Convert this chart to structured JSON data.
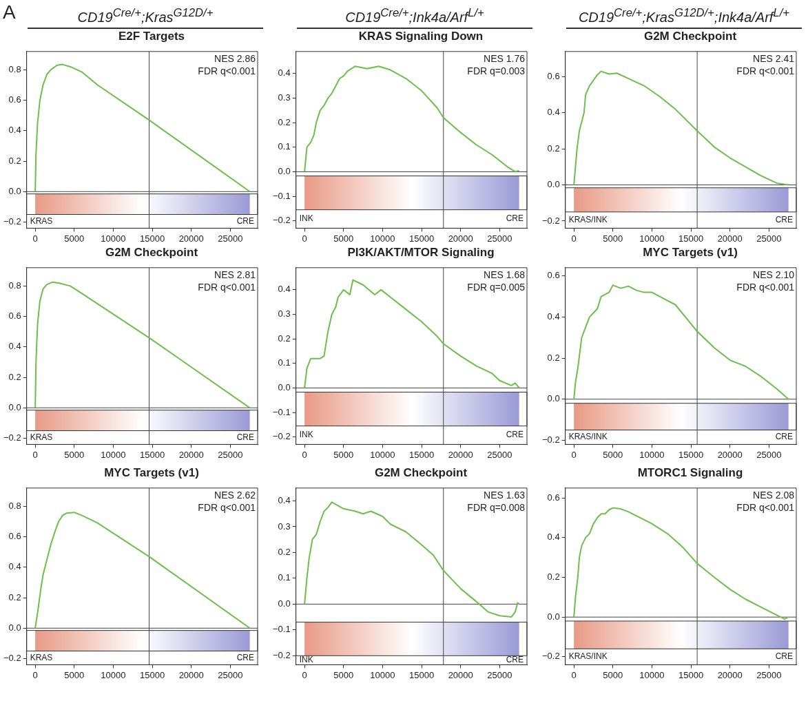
{
  "chart_data": [
    {
      "type": "line",
      "title": "CD19$^{Cre/+}$;Kras$^{G12D/+}$",
      "subtitle": "E2F Targets",
      "color": "#6cbf4a",
      "marker": "none",
      "x": [
        0,
        100,
        300,
        600,
        1000,
        1500,
        2000,
        2800,
        3500,
        4500,
        6000,
        8000,
        14600,
        27500
      ],
      "values": [
        0,
        0.25,
        0.45,
        0.6,
        0.7,
        0.77,
        0.8,
        0.83,
        0.835,
        0.82,
        0.785,
        0.7,
        0.47,
        0
      ],
      "xlim": [
        -1100,
        28500
      ],
      "xticks": [
        0,
        5000,
        10000,
        15000,
        20000,
        25000
      ],
      "ylim": [
        -0.24,
        0.92
      ],
      "yticks": [
        {
          "value": -0.2,
          "label": "−0.2"
        },
        {
          "value": 0,
          "label": "0.0"
        },
        0.2,
        0.4,
        0.6,
        0.8
      ],
      "ref_lines": [
        {
          "axis": "x",
          "value": 14600
        },
        {
          "axis": "y",
          "value": 0
        }
      ],
      "bands": [
        {
          "axis": "y",
          "from": -0.15,
          "to": -0.015
        }
      ],
      "annotations": [
        "A",
        "NES 2.86",
        "FDR q<0.001",
        "KRAS",
        "CRE"
      ]
    },
    {
      "type": "line",
      "title": "CD19$^{Cre/+}$;Ink4a/Arf$^{L/+}$",
      "subtitle": "KRAS Signaling Down",
      "color": "#6cbf4a",
      "marker": "none",
      "x": [
        0,
        300,
        800,
        1200,
        1500,
        2000,
        2500,
        3000,
        3500,
        4000,
        4500,
        5000,
        5500,
        6500,
        8000,
        9500,
        11000,
        13000,
        15000,
        17000,
        17800,
        20000,
        22000,
        24000,
        26000,
        27000,
        27500
      ],
      "values": [
        0,
        0.1,
        0.12,
        0.15,
        0.2,
        0.25,
        0.27,
        0.3,
        0.32,
        0.35,
        0.38,
        0.39,
        0.41,
        0.43,
        0.42,
        0.43,
        0.415,
        0.38,
        0.33,
        0.26,
        0.22,
        0.16,
        0.11,
        0.07,
        0.02,
        0,
        0.005
      ],
      "xlim": [
        -1100,
        28500
      ],
      "xticks": [
        0,
        5000,
        10000,
        15000,
        20000,
        25000
      ],
      "ylim": [
        -0.23,
        0.49
      ],
      "yticks": [
        {
          "value": -0.2,
          "label": "−0.2"
        },
        {
          "value": -0.1,
          "label": "−0.1"
        },
        {
          "value": 0,
          "label": "0.0"
        },
        0.1,
        0.2,
        0.3,
        0.4
      ],
      "ref_lines": [
        {
          "axis": "x",
          "value": 17800
        },
        {
          "axis": "y",
          "value": 0
        }
      ],
      "bands": [
        {
          "axis": "y",
          "from": -0.155,
          "to": -0.017
        }
      ],
      "annotations": [
        "NES 1.76",
        "FDR q=0.003",
        "INK",
        "CRE"
      ]
    },
    {
      "type": "line",
      "title": "CD19$^{Cre/+}$;Kras$^{G12D/+}$;Ink4a/Arf$^{L/+}$",
      "subtitle": "G2M Checkpoint",
      "color": "#6cbf4a",
      "marker": "none",
      "x": [
        0,
        200,
        400,
        700,
        1000,
        1300,
        1500,
        2000,
        2500,
        3000,
        3500,
        4500,
        5500,
        7000,
        9000,
        11000,
        13000,
        15800,
        18000,
        20000,
        22000,
        24000,
        26000,
        27500
      ],
      "values": [
        0,
        0.1,
        0.2,
        0.3,
        0.35,
        0.4,
        0.5,
        0.55,
        0.58,
        0.61,
        0.63,
        0.615,
        0.62,
        0.59,
        0.55,
        0.49,
        0.42,
        0.3,
        0.21,
        0.15,
        0.1,
        0.05,
        0.01,
        0
      ],
      "xlim": [
        -1100,
        28500
      ],
      "xticks": [
        0,
        5000,
        10000,
        15000,
        20000,
        25000
      ],
      "ylim": [
        -0.24,
        0.74
      ],
      "yticks": [
        {
          "value": -0.2,
          "label": "−0.2"
        },
        {
          "value": 0,
          "label": "0.0"
        },
        0.2,
        0.4,
        0.6
      ],
      "ref_lines": [
        {
          "axis": "x",
          "value": 15800
        },
        {
          "axis": "y",
          "value": 0
        }
      ],
      "bands": [
        {
          "axis": "y",
          "from": -0.15,
          "to": -0.016
        }
      ],
      "annotations": [
        "NES 2.41",
        "FDR q<0.001",
        "KRAS/INK",
        "CRE"
      ]
    },
    {
      "type": "line",
      "title": "G2M Checkpoint",
      "color": "#6cbf4a",
      "marker": "none",
      "x": [
        0,
        100,
        300,
        600,
        1000,
        1500,
        2200,
        3000,
        4500,
        6000,
        14600,
        27500
      ],
      "values": [
        0,
        0.3,
        0.55,
        0.7,
        0.78,
        0.81,
        0.825,
        0.82,
        0.8,
        0.75,
        0.46,
        0
      ],
      "xlim": [
        -1100,
        28500
      ],
      "xticks": [
        0,
        5000,
        10000,
        15000,
        20000,
        25000
      ],
      "ylim": [
        -0.24,
        0.92
      ],
      "yticks": [
        {
          "value": -0.2,
          "label": "−0.2"
        },
        {
          "value": 0,
          "label": "0.0"
        },
        0.2,
        0.4,
        0.6,
        0.8
      ],
      "ref_lines": [
        {
          "axis": "x",
          "value": 14600
        },
        {
          "axis": "y",
          "value": 0
        }
      ],
      "bands": [
        {
          "axis": "y",
          "from": -0.15,
          "to": -0.015
        }
      ],
      "annotations": [
        "NES 2.81",
        "FDR q<0.001",
        "KRAS",
        "CRE"
      ]
    },
    {
      "type": "line",
      "title": "PI3K/AKT/MTOR Signaling",
      "color": "#6cbf4a",
      "marker": "none",
      "x": [
        0,
        300,
        800,
        2000,
        2500,
        3000,
        3500,
        4000,
        4300,
        5000,
        5800,
        6200,
        7500,
        9000,
        9800,
        11000,
        13000,
        15000,
        17000,
        17800,
        20000,
        22000,
        24000,
        25000,
        26500,
        27000,
        27500
      ],
      "values": [
        0,
        0.08,
        0.12,
        0.12,
        0.13,
        0.23,
        0.3,
        0.33,
        0.37,
        0.4,
        0.38,
        0.44,
        0.42,
        0.38,
        0.4,
        0.37,
        0.32,
        0.27,
        0.21,
        0.18,
        0.13,
        0.09,
        0.06,
        0.03,
        0.01,
        0.02,
        0
      ],
      "xlim": [
        -1100,
        28500
      ],
      "xticks": [
        0,
        5000,
        10000,
        15000,
        20000,
        25000
      ],
      "ylim": [
        -0.23,
        0.49
      ],
      "yticks": [
        {
          "value": -0.2,
          "label": "−0.2"
        },
        {
          "value": -0.1,
          "label": "−0.1"
        },
        {
          "value": 0,
          "label": "0.0"
        },
        0.1,
        0.2,
        0.3,
        0.4
      ],
      "ref_lines": [
        {
          "axis": "x",
          "value": 17800
        },
        {
          "axis": "y",
          "value": 0
        }
      ],
      "bands": [
        {
          "axis": "y",
          "from": -0.155,
          "to": -0.017
        }
      ],
      "annotations": [
        "NES 1.68",
        "FDR q=0.005",
        "INK",
        "CRE"
      ]
    },
    {
      "type": "line",
      "title": "MYC Targets (v1)",
      "color": "#6cbf4a",
      "marker": "none",
      "x": [
        0,
        200,
        500,
        1000,
        1500,
        2000,
        2500,
        3000,
        3500,
        4500,
        5000,
        6000,
        7000,
        8000,
        9000,
        10000,
        11000,
        13000,
        15800,
        18000,
        20000,
        22000,
        24000,
        26000,
        27500
      ],
      "values": [
        0,
        0.08,
        0.15,
        0.3,
        0.35,
        0.4,
        0.42,
        0.44,
        0.5,
        0.52,
        0.555,
        0.54,
        0.55,
        0.53,
        0.52,
        0.52,
        0.5,
        0.46,
        0.33,
        0.25,
        0.19,
        0.16,
        0.11,
        0.05,
        0
      ],
      "xlim": [
        -1100,
        28500
      ],
      "xticks": [
        0,
        5000,
        10000,
        15000,
        20000,
        25000
      ],
      "ylim": [
        -0.22,
        0.64
      ],
      "yticks": [
        {
          "value": -0.2,
          "label": "−0.2"
        },
        {
          "value": 0,
          "label": "0.0"
        },
        0.2,
        0.4,
        0.6
      ],
      "ref_lines": [
        {
          "axis": "x",
          "value": 15800
        },
        {
          "axis": "y",
          "value": 0
        }
      ],
      "bands": [
        {
          "axis": "y",
          "from": -0.15,
          "to": -0.02
        }
      ],
      "annotations": [
        "NES 2.10",
        "FDR q<0.001",
        "KRAS/INK",
        "CRE"
      ]
    },
    {
      "type": "line",
      "title": "MYC Targets (v1)",
      "color": "#6cbf4a",
      "marker": "none",
      "x": [
        0,
        300,
        700,
        1000,
        1500,
        2000,
        2500,
        3000,
        3500,
        4000,
        5000,
        6000,
        8000,
        14600,
        27500
      ],
      "values": [
        0,
        0.1,
        0.25,
        0.35,
        0.45,
        0.55,
        0.63,
        0.7,
        0.74,
        0.755,
        0.76,
        0.74,
        0.69,
        0.47,
        0
      ],
      "xlim": [
        -1100,
        28500
      ],
      "xticks": [
        0,
        5000,
        10000,
        15000,
        20000,
        25000
      ],
      "ylim": [
        -0.24,
        0.92
      ],
      "yticks": [
        {
          "value": -0.2,
          "label": "−0.2"
        },
        {
          "value": 0,
          "label": "0.0"
        },
        0.2,
        0.4,
        0.6,
        0.8
      ],
      "ref_lines": [
        {
          "axis": "x",
          "value": 14600
        },
        {
          "axis": "y",
          "value": 0
        }
      ],
      "bands": [
        {
          "axis": "y",
          "from": -0.15,
          "to": -0.015
        }
      ],
      "annotations": [
        "NES 2.62",
        "FDR q<0.001",
        "KRAS",
        "CRE"
      ]
    },
    {
      "type": "line",
      "title": "G2M Checkpoint",
      "color": "#6cbf4a",
      "marker": "none",
      "x": [
        0,
        300,
        600,
        1000,
        1500,
        2000,
        2500,
        3000,
        3500,
        5000,
        6500,
        7500,
        8500,
        10000,
        11000,
        13000,
        15000,
        16500,
        17800,
        20000,
        22000,
        23500,
        25000,
        26500,
        27000,
        27300,
        27500
      ],
      "values": [
        0,
        0.1,
        0.18,
        0.25,
        0.27,
        0.32,
        0.36,
        0.375,
        0.395,
        0.37,
        0.36,
        0.35,
        0.36,
        0.34,
        0.31,
        0.28,
        0.23,
        0.19,
        0.13,
        0.06,
        0.01,
        -0.03,
        -0.045,
        -0.05,
        -0.03,
        0.005,
        0
      ],
      "xlim": [
        -1100,
        28500
      ],
      "xticks": [
        0,
        5000,
        10000,
        15000,
        20000,
        25000
      ],
      "ylim": [
        -0.235,
        0.45
      ],
      "yticks": [
        {
          "value": -0.2,
          "label": "−0.2"
        },
        {
          "value": -0.1,
          "label": "−0.1"
        },
        {
          "value": 0,
          "label": "0.0"
        },
        0.1,
        0.2,
        0.3,
        0.4
      ],
      "ref_lines": [
        {
          "axis": "x",
          "value": 17800
        },
        {
          "axis": "y",
          "value": 0
        }
      ],
      "bands": [
        {
          "axis": "y",
          "from": -0.2,
          "to": -0.07
        }
      ],
      "annotations": [
        "NES 1.63",
        "FDR q=0.008",
        "INK",
        "CRE"
      ]
    },
    {
      "type": "line",
      "title": "MTORC1 Signaling",
      "color": "#6cbf4a",
      "marker": "none",
      "x": [
        0,
        200,
        500,
        700,
        1000,
        1500,
        2000,
        2500,
        3000,
        3500,
        4000,
        4500,
        5000,
        6000,
        7000,
        8000,
        10000,
        12000,
        14000,
        15800,
        18000,
        20000,
        22000,
        24000,
        26000,
        27000,
        27500
      ],
      "values": [
        0,
        0.1,
        0.2,
        0.3,
        0.36,
        0.4,
        0.42,
        0.47,
        0.5,
        0.52,
        0.52,
        0.54,
        0.55,
        0.545,
        0.53,
        0.51,
        0.47,
        0.42,
        0.35,
        0.27,
        0.2,
        0.14,
        0.09,
        0.05,
        0.01,
        -0.01,
        0
      ],
      "xlim": [
        -1100,
        28500
      ],
      "xticks": [
        0,
        5000,
        10000,
        15000,
        20000,
        25000
      ],
      "ylim": [
        -0.24,
        0.65
      ],
      "yticks": [
        {
          "value": -0.2,
          "label": "−0.2"
        },
        {
          "value": 0,
          "label": "0.0"
        },
        0.2,
        0.4,
        0.6
      ],
      "ref_lines": [
        {
          "axis": "x",
          "value": 15800
        },
        {
          "axis": "y",
          "value": 0
        }
      ],
      "bands": [
        {
          "axis": "y",
          "from": -0.16,
          "to": -0.02
        }
      ],
      "annotations": [
        "NES 2.08",
        "FDR q<0.001",
        "KRAS/INK",
        "CRE"
      ]
    }
  ]
}
